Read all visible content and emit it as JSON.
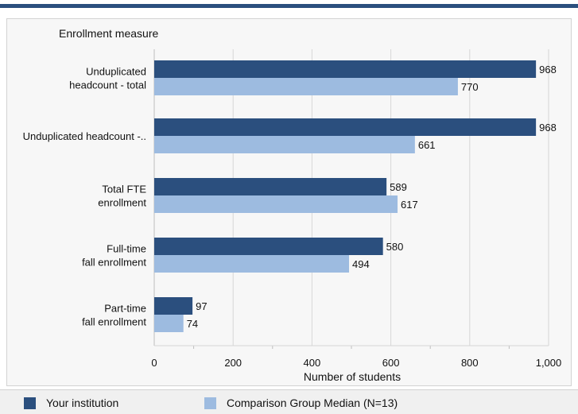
{
  "chart_data": {
    "type": "bar",
    "orientation": "horizontal",
    "title": "",
    "ylabel": "Enrollment measure",
    "xlabel": "Number of students",
    "categories": [
      [
        "Unduplicated",
        "headcount - total"
      ],
      [
        "Unduplicated headcount -.."
      ],
      [
        "Total FTE",
        "enrollment"
      ],
      [
        "Full-time",
        "fall enrollment"
      ],
      [
        "Part-time",
        "fall enrollment"
      ]
    ],
    "series": [
      {
        "name": "Your institution",
        "color": "#2b4f7e",
        "values": [
          968,
          968,
          589,
          580,
          97
        ]
      },
      {
        "name": "Comparison Group Median (N=13)",
        "color": "#9dbbe0",
        "values": [
          770,
          661,
          617,
          494,
          74
        ]
      }
    ],
    "xlim": [
      0,
      1000
    ],
    "xticks": [
      0,
      200,
      400,
      600,
      800,
      1000
    ],
    "xtick_labels": [
      "0",
      "200",
      "400",
      "600",
      "800",
      "1,000"
    ],
    "grid": "vertical",
    "legend_position": "bottom"
  }
}
